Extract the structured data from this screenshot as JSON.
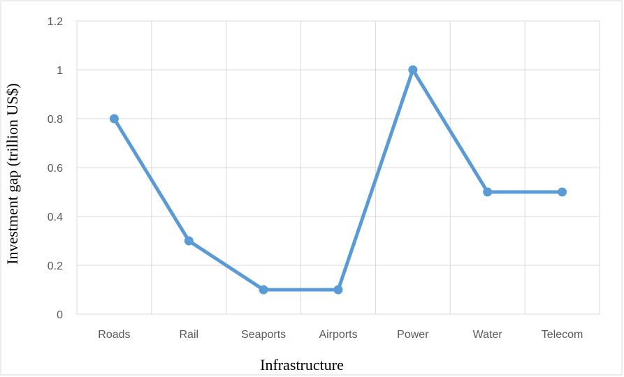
{
  "chart_data": {
    "type": "line",
    "title": "",
    "xlabel": "Infrastructure",
    "ylabel": "Investment gap (trillion US$)",
    "categories": [
      "Roads",
      "Rail",
      "Seaports",
      "Airports",
      "Power",
      "Water",
      "Telecom"
    ],
    "series": [
      {
        "values": [
          0.8,
          0.3,
          0.1,
          0.1,
          1.0,
          0.5,
          0.5
        ]
      }
    ],
    "ylim": [
      0,
      1.2
    ],
    "yticks": [
      0,
      0.2,
      0.4,
      0.6,
      0.8,
      1,
      1.2
    ],
    "ytick_labels": [
      "0",
      "0.2",
      "0.4",
      "0.6",
      "0.8",
      "1",
      "1.2"
    ],
    "grid": true,
    "legend": "none",
    "colors": {
      "line": "#5b9bd5",
      "marker": "#5b9bd5",
      "grid": "#d9d9d9",
      "border": "#d9d9d9"
    }
  }
}
